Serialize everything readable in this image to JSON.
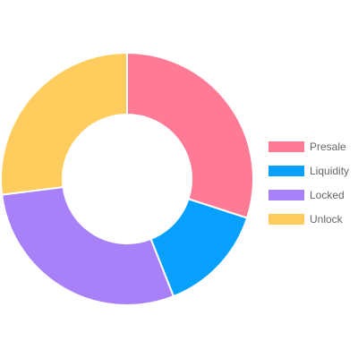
{
  "chart_data": {
    "type": "doughnut",
    "series": [
      {
        "name": "Presale",
        "value": 30,
        "color": "#FF7A95"
      },
      {
        "name": "Liquidity",
        "value": 14,
        "color": "#07A0FF"
      },
      {
        "name": "Locked",
        "value": 29,
        "color": "#A880F7"
      },
      {
        "name": "Unlock",
        "value": 27,
        "color": "#FFCC5E"
      }
    ],
    "legend_position": "right"
  }
}
